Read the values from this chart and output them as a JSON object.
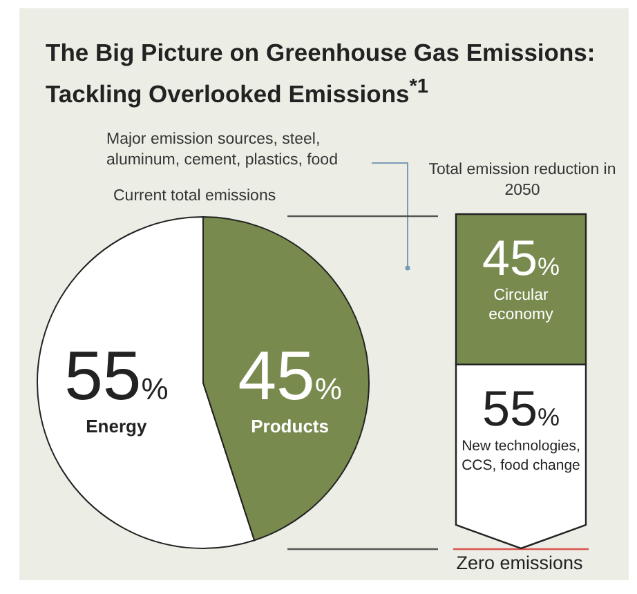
{
  "chart_data": [
    {
      "type": "pie",
      "title": "The Big Picture on Greenhouse Gas Emissions: Tackling Overlooked Emissions$^{*1}$",
      "categories": [
        "Energy",
        "Products"
      ],
      "values": [
        55,
        45
      ],
      "colors": [
        "#ffffff",
        "#788a4e"
      ],
      "value_labels": [
        "55%",
        "45%"
      ],
      "legend": false,
      "annotations": [
        "Major emission sources, steel, aluminum, cement, plastics, food",
        "Current total emissions"
      ]
    },
    {
      "type": "bar",
      "stacked": true,
      "categories": [
        null
      ],
      "legend": false,
      "series": [
        {
          "name": "New technologies, CCS, food change",
          "color": "#ffffff",
          "values": [
            55
          ],
          "value_labels": [
            "55%"
          ]
        },
        {
          "name": "Circular economy",
          "color": "#788a4e",
          "values": [
            45
          ],
          "value_labels": [
            "45%"
          ]
        }
      ],
      "annotations": [
        "Total emission reduction in 2050",
        "Zero emissions"
      ]
    }
  ]
}
